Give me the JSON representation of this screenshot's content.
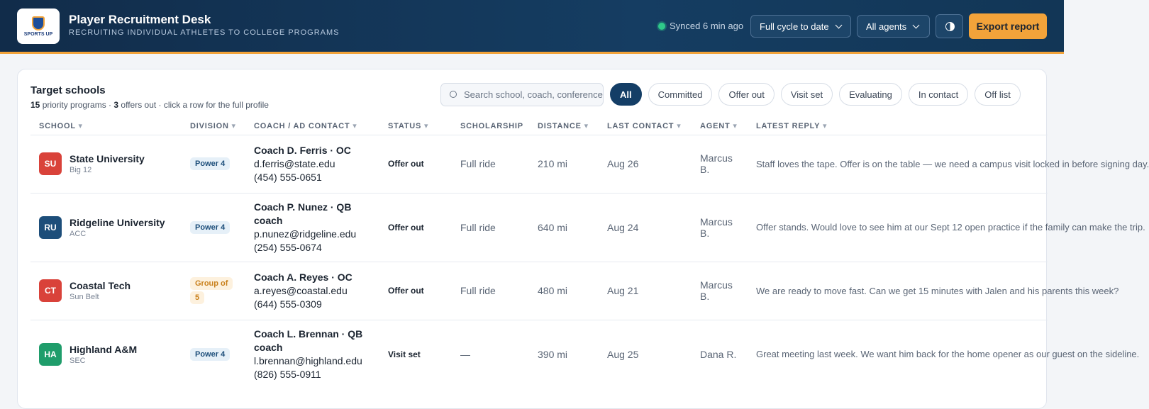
{
  "header": {
    "logo": "SPORTS UP",
    "title": "Player Recruitment Desk",
    "subtitle": "RECRUITING INDIVIDUAL ATHLETES TO COLLEGE PROGRAMS",
    "sync": "Synced 6 min ago",
    "filters": [
      "Full cycle to date",
      "All agents"
    ],
    "export": "Export report"
  },
  "panel": {
    "title": "Target schools",
    "summary": [
      "15",
      " priority programs · ",
      "3",
      " offers out · click a row for the full profile"
    ],
    "search": "Search school, coach, conference",
    "chips": [
      "All",
      "Committed",
      "Offer out",
      "Visit set",
      "Evaluating",
      "In contact",
      "Off list"
    ]
  },
  "table": {
    "columns": [
      "SCHOOL",
      "DIVISION",
      "COACH / AD CONTACT",
      "STATUS",
      "SCHOLARSHIP",
      "DISTANCE",
      "LAST CONTACT",
      "AGENT",
      "LATEST REPLY"
    ],
    "rows": [
      {
        "initials": "SU",
        "color": "#d9423a",
        "school": "State University",
        "conference": "Big 12",
        "division": "Power 4",
        "coach": "Coach D. Ferris · OC",
        "email": "d.ferris@state.edu",
        "phone": "(454) 555-0651",
        "status": "Offer out",
        "scholarship": "Full ride",
        "distance": "210 mi",
        "last_contact": "Aug 26",
        "agent": "Marcus B.",
        "reply": "Staff loves the tape. Offer is on the table — we need a campus visit locked in before signing day."
      },
      {
        "initials": "RU",
        "color": "#1d4e7a",
        "school": "Ridgeline University",
        "conference": "ACC",
        "division": "Power 4",
        "coach": "Coach P. Nunez · QB coach",
        "email": "p.nunez@ridgeline.edu",
        "phone": "(254) 555-0674",
        "status": "Offer out",
        "scholarship": "Full ride",
        "distance": "640 mi",
        "last_contact": "Aug 24",
        "agent": "Marcus B.",
        "reply": "Offer stands. Would love to see him at our Sept 12 open practice if the family can make the trip."
      },
      {
        "initials": "CT",
        "color": "#d9423a",
        "school": "Coastal Tech",
        "conference": "Sun Belt",
        "division": "Group of 5",
        "coach": "Coach A. Reyes · OC",
        "email": "a.reyes@coastal.edu",
        "phone": "(644) 555-0309",
        "status": "Offer out",
        "scholarship": "Full ride",
        "distance": "480 mi",
        "last_contact": "Aug 21",
        "agent": "Marcus B.",
        "reply": "We are ready to move fast. Can we get 15 minutes with Jalen and his parents this week?"
      },
      {
        "initials": "HA",
        "color": "#1f9d6b",
        "school": "Highland A&M",
        "conference": "SEC",
        "division": "Power 4",
        "coach": "Coach L. Brennan · QB coach",
        "email": "l.brennan@highland.edu",
        "phone": "(826) 555-0911",
        "status": "Visit set",
        "scholarship": "—",
        "distance": "390 mi",
        "last_contact": "Aug 25",
        "agent": "Dana R.",
        "reply": "Great meeting last week. We want him back for the home opener as our guest on the sideline."
      }
    ]
  }
}
